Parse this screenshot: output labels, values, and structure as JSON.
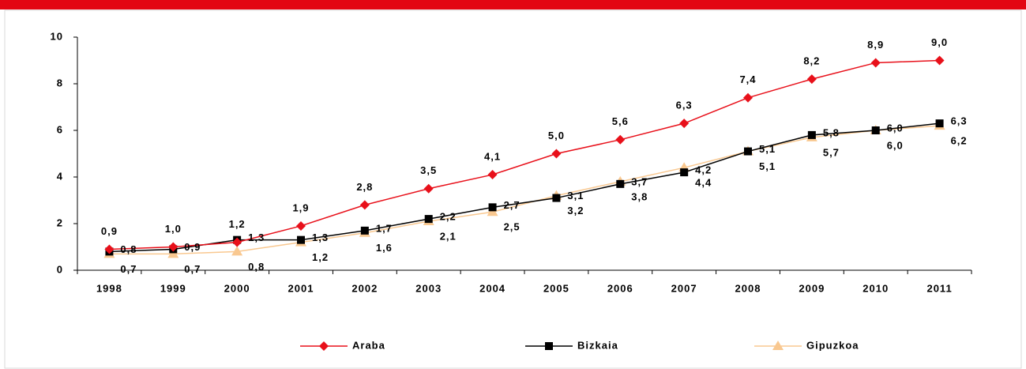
{
  "chart_data": {
    "type": "line",
    "categories": [
      "1998",
      "1999",
      "2000",
      "2001",
      "2002",
      "2003",
      "2004",
      "2005",
      "2006",
      "2007",
      "2008",
      "2009",
      "2010",
      "2011"
    ],
    "series": [
      {
        "name": "Araba",
        "color": "#e8101a",
        "marker": "diamond",
        "values": [
          0.9,
          1.0,
          1.2,
          1.9,
          2.8,
          3.5,
          4.1,
          5.0,
          5.6,
          6.3,
          7.4,
          8.2,
          8.9,
          9.0
        ],
        "value_labels": [
          "0,9",
          "1,0",
          "1,2",
          "1,9",
          "2,8",
          "3,5",
          "4,1",
          "5,0",
          "5,6",
          "6,3",
          "7,4",
          "8,2",
          "8,9",
          "9,0"
        ]
      },
      {
        "name": "Bizkaia",
        "color": "#000000",
        "marker": "square",
        "values": [
          0.8,
          0.9,
          1.3,
          1.3,
          1.7,
          2.2,
          2.7,
          3.1,
          3.7,
          4.2,
          5.1,
          5.8,
          6.0,
          6.3
        ],
        "value_labels": [
          "0,8",
          "0,9",
          "1,3",
          "1,3",
          "1,7",
          "2,2",
          "2,7",
          "3,1",
          "3,7",
          "4,2",
          "5,1",
          "5,8",
          "6,0",
          "6,3"
        ]
      },
      {
        "name": "Gipuzkoa",
        "color": "#f9c890",
        "marker": "triangle",
        "values": [
          0.7,
          0.7,
          0.8,
          1.2,
          1.6,
          2.1,
          2.5,
          3.2,
          3.8,
          4.4,
          5.1,
          5.7,
          6.0,
          6.2
        ],
        "value_labels": [
          "0,7",
          "0,7",
          "0,8",
          "1,2",
          "1,6",
          "2,1",
          "2,5",
          "3,2",
          "3,8",
          "4,4",
          "5,1",
          "5,7",
          "6,0",
          "6,2"
        ]
      }
    ],
    "ylim": [
      0,
      10
    ],
    "yticks": [
      0,
      2,
      4,
      6,
      8,
      10
    ],
    "grid": false,
    "legend": "bottom"
  }
}
